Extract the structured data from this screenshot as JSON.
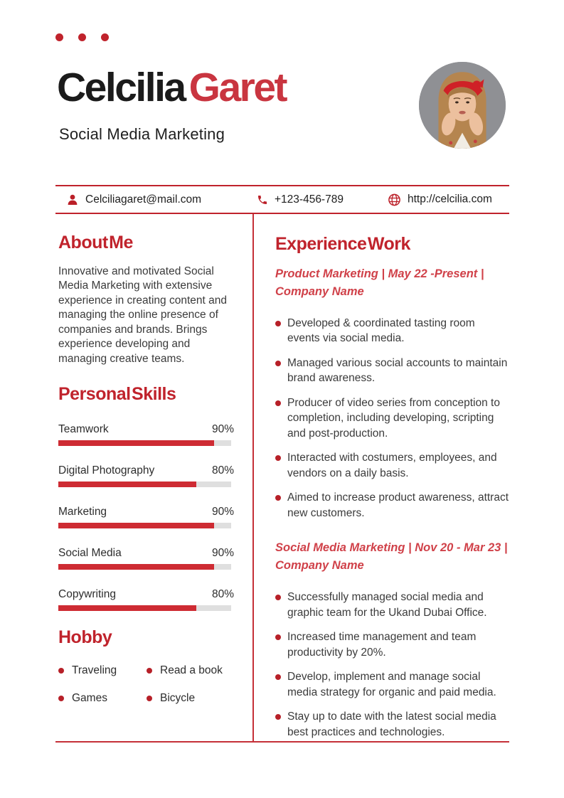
{
  "header": {
    "first_name": "Celcilia",
    "last_name": "Garet",
    "role": "Social Media Marketing"
  },
  "contact": {
    "email": "Celciliagaret@mail.com",
    "phone": "+123-456-789",
    "website": "http://celcilia.com"
  },
  "about": {
    "heading": "About Me",
    "text": "Innovative and motivated Social Media Marketing with extensive experience in creating content and managing the online presence of companies and brands. Brings experience developing and managing creative teams."
  },
  "skills": {
    "heading": "Personal Skills",
    "items": [
      {
        "label": "Teamwork",
        "percent": 90,
        "percent_label": "90%"
      },
      {
        "label": "Digital Photography",
        "percent": 80,
        "percent_label": "80%"
      },
      {
        "label": "Marketing",
        "percent": 90,
        "percent_label": "90%"
      },
      {
        "label": "Social Media",
        "percent": 90,
        "percent_label": "90%"
      },
      {
        "label": "Copywriting",
        "percent": 80,
        "percent_label": "80%"
      }
    ]
  },
  "hobby": {
    "heading": "Hobby",
    "items": [
      "Traveling",
      "Read a book",
      "Games",
      "Bicycle"
    ]
  },
  "experience": {
    "heading": "Experience Work",
    "jobs": [
      {
        "title": "Product Marketing | May 22 -Present | Company Name",
        "bullets": [
          "Developed & coordinated tasting room events via social media.",
          "Managed various social accounts to maintain brand awareness.",
          "Producer of video series from conception to completion, including developing, scripting and post-production.",
          "Interacted with costumers, employees, and vendors on a daily basis.",
          "Aimed to increase product awareness, attract new customers."
        ]
      },
      {
        "title": "Social Media Marketing | Nov 20 - Mar 23 | Company Name",
        "bullets": [
          "Successfully managed social media and graphic team for the Ukand Dubai Office.",
          "Increased time management and team productivity by 20%.",
          "Develop, implement and manage social media strategy for organic and paid media.",
          "Stay up to date with the latest social media best practices and technologies."
        ]
      }
    ]
  },
  "colors": {
    "primary_red": "#c0232c",
    "name_red": "#c93540",
    "light_red": "#d04149",
    "bar_red": "#ce2b33",
    "dot_red": "#b72028",
    "divider_red": "#c53038",
    "track_gray": "#dfdfdf"
  }
}
